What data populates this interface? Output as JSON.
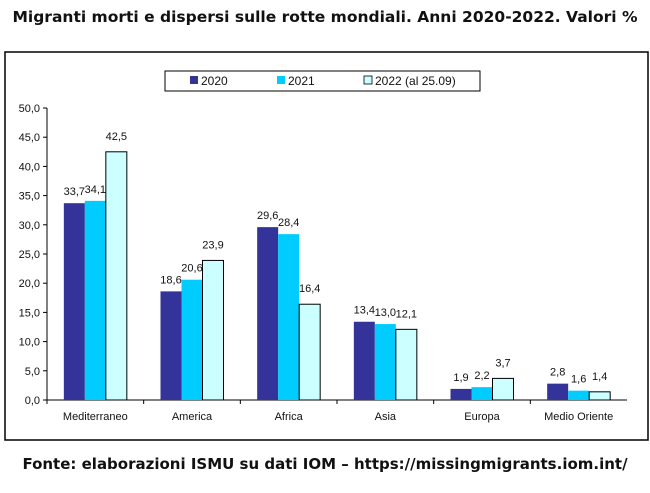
{
  "title": "Migranti morti e dispersi sulle rotte mondiali. Anni 2020-2022. Valori %",
  "source": "Fonte: elaborazioni ISMU su dati IOM – https://missingmigrants.iom.int/",
  "chart_data": {
    "type": "bar",
    "title": "Migranti morti e dispersi sulle rotte mondiali. Anni 2020-2022. Valori %",
    "categories": [
      "Mediterraneo",
      "America",
      "Africa",
      "Asia",
      "Europa",
      "Medio Oriente"
    ],
    "series": [
      {
        "name": "2020",
        "color": "#333399",
        "values": [
          33.7,
          18.6,
          29.6,
          13.4,
          1.9,
          2.8
        ],
        "labels": [
          "33,7",
          "18,6",
          "29,6",
          "13,4",
          "1,9",
          "2,8"
        ]
      },
      {
        "name": "2021",
        "color": "#00CCFF",
        "values": [
          34.1,
          20.6,
          28.4,
          13.0,
          2.2,
          1.6
        ],
        "labels": [
          "34,1",
          "20,6",
          "28,4",
          "13,0",
          "2,2",
          "1,6"
        ]
      },
      {
        "name": "2022 (al 25.09)",
        "color": "#CCFFFF",
        "values": [
          42.5,
          23.9,
          16.4,
          12.1,
          3.7,
          1.4
        ],
        "labels": [
          "42,5",
          "23,9",
          "16,4",
          "12,1",
          "3,7",
          "1,4"
        ]
      }
    ],
    "yticks": [
      "0,0",
      "5,0",
      "10,0",
      "15,0",
      "20,0",
      "25,0",
      "30,0",
      "35,0",
      "40,0",
      "45,0",
      "50,0"
    ],
    "ylim": [
      0,
      50
    ],
    "xlabel": "",
    "ylabel": "",
    "legend": "top-center",
    "grid": false
  }
}
